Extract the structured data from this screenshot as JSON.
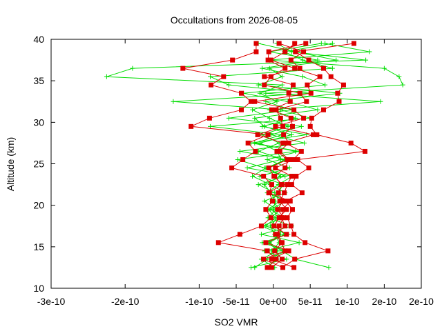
{
  "chart_data": {
    "type": "line",
    "title": "Occultations from 2026-08-05",
    "xlabel": "SO2 VMR",
    "ylabel": "Altitude (km)",
    "xlim": [
      -3e-10,
      2e-10
    ],
    "ylim": [
      10,
      40
    ],
    "x_ticks": [
      {
        "v": -3e-10,
        "label": "-3e-10"
      },
      {
        "v": -2e-10,
        "label": "-2e-10"
      },
      {
        "v": -1e-10,
        "label": "-1e-10"
      },
      {
        "v": -5e-11,
        "label": "-5e-11"
      },
      {
        "v": 0,
        "label": "0e+00"
      },
      {
        "v": 5e-11,
        "label": "5e-11"
      },
      {
        "v": 1e-10,
        "label": "1e-10"
      },
      {
        "v": 1.5e-10,
        "label": "2e-10"
      },
      {
        "v": 2e-10,
        "label": "2e-10"
      }
    ],
    "y_ticks": [
      {
        "v": 10,
        "label": "10"
      },
      {
        "v": 15,
        "label": "15"
      },
      {
        "v": 20,
        "label": "20"
      },
      {
        "v": 25,
        "label": "25"
      },
      {
        "v": 30,
        "label": "30"
      },
      {
        "v": 35,
        "label": "35"
      },
      {
        "v": 40,
        "label": "40"
      }
    ],
    "grid": false,
    "colors": {
      "green": "#00dd00",
      "red": "#dd0000"
    },
    "series": [
      {
        "color": "green",
        "marker": "plus",
        "points": [
          [
            -8e-12,
            12.5
          ],
          [
            5e-12,
            13.5
          ],
          [
            -2e-12,
            14.5
          ],
          [
            8e-12,
            15.5
          ],
          [
            2e-12,
            16.5
          ],
          [
            -4e-12,
            17.5
          ],
          [
            6e-12,
            18.5
          ],
          [
            0,
            19.5
          ],
          [
            3e-12,
            20.5
          ],
          [
            -3e-12,
            21.5
          ],
          [
            -1.2e-11,
            22.5
          ],
          [
            1e-11,
            23.5
          ],
          [
            -6e-12,
            24.5
          ],
          [
            1.5e-11,
            25.5
          ],
          [
            -2e-11,
            26.5
          ],
          [
            8e-12,
            27.5
          ],
          [
            -1.5e-11,
            28.5
          ],
          [
            2e-11,
            29.5
          ],
          [
            -5e-12,
            30.5
          ],
          [
            -2.8e-11,
            31.5
          ],
          [
            5e-12,
            32.5
          ],
          [
            -1.8e-11,
            33.5
          ],
          [
            1.2e-11,
            34.5
          ],
          [
            -2.25e-10,
            35.5
          ],
          [
            -1.9e-10,
            36.5
          ],
          [
            1.25e-10,
            37.5
          ],
          [
            2.5e-11,
            38.5
          ],
          [
            5e-12,
            39.5
          ]
        ]
      },
      {
        "color": "green",
        "marker": "plus",
        "points": [
          [
            7.5e-11,
            12.5
          ],
          [
            3e-11,
            13.5
          ],
          [
            1.2e-11,
            14.5
          ],
          [
            -5e-12,
            15.5
          ],
          [
            1.5e-11,
            16.5
          ],
          [
            3e-12,
            17.5
          ],
          [
            -3e-12,
            18.5
          ],
          [
            1e-11,
            19.5
          ],
          [
            -2e-12,
            20.5
          ],
          [
            6e-12,
            21.5
          ],
          [
            1.4e-11,
            22.5
          ],
          [
            -1.8e-11,
            23.5
          ],
          [
            2.2e-11,
            24.5
          ],
          [
            -8e-12,
            25.5
          ],
          [
            3.5e-11,
            26.5
          ],
          [
            -3e-11,
            27.5
          ],
          [
            4.5e-11,
            28.5
          ],
          [
            -1.5e-11,
            29.5
          ],
          [
            3e-11,
            30.5
          ],
          [
            -5e-12,
            31.5
          ],
          [
            1.45e-10,
            32.5
          ],
          [
            -1e-11,
            33.5
          ],
          [
            1.75e-10,
            34.5
          ],
          [
            1.7e-10,
            35.5
          ],
          [
            1.5e-10,
            36.5
          ],
          [
            -5e-12,
            37.5
          ],
          [
            1.3e-10,
            38.5
          ],
          [
            7e-11,
            39.5
          ]
        ]
      },
      {
        "color": "green",
        "marker": "plus",
        "points": [
          [
            -2.5e-11,
            12.5
          ],
          [
            -8e-12,
            13.5
          ],
          [
            1.8e-11,
            14.5
          ],
          [
            -1.5e-11,
            15.5
          ],
          [
            2e-11,
            16.5
          ],
          [
            -1e-11,
            17.5
          ],
          [
            3e-12,
            18.5
          ],
          [
            -6e-12,
            19.5
          ],
          [
            8e-12,
            20.5
          ],
          [
            2e-12,
            21.5
          ],
          [
            -2e-11,
            22.5
          ],
          [
            1.6e-11,
            23.5
          ],
          [
            -1.2e-11,
            24.5
          ],
          [
            -4.8e-11,
            25.5
          ],
          [
            3e-11,
            26.5
          ],
          [
            -2.5e-11,
            27.5
          ],
          [
            1.2e-11,
            28.5
          ],
          [
            -8.5e-11,
            29.5
          ],
          [
            5e-11,
            30.5
          ],
          [
            1e-11,
            31.5
          ],
          [
            -1.35e-10,
            32.5
          ],
          [
            5e-11,
            33.5
          ],
          [
            -6e-11,
            34.5
          ],
          [
            -8.5e-11,
            35.5
          ],
          [
            8e-11,
            36.5
          ],
          [
            4e-11,
            37.5
          ],
          [
            1.5e-11,
            38.5
          ],
          [
            8e-11,
            39.5
          ]
        ]
      },
      {
        "color": "green",
        "marker": "plus",
        "points": [
          [
            -3e-11,
            12.5
          ],
          [
            1.8e-11,
            13.5
          ],
          [
            -1.2e-11,
            14.5
          ],
          [
            3.5e-11,
            15.5
          ],
          [
            -1.6e-11,
            16.5
          ],
          [
            2.5e-11,
            17.5
          ],
          [
            -7e-12,
            18.5
          ],
          [
            4e-12,
            19.5
          ],
          [
            -1.2e-11,
            20.5
          ],
          [
            1.6e-11,
            21.5
          ],
          [
            -4e-12,
            22.5
          ],
          [
            -2.8e-11,
            23.5
          ],
          [
            -1e-11,
            24.5
          ],
          [
            1.8e-11,
            25.5
          ],
          [
            -4.5e-11,
            26.5
          ],
          [
            4.2e-11,
            27.5
          ],
          [
            -3e-12,
            28.5
          ],
          [
            3.8e-11,
            29.5
          ],
          [
            -6e-11,
            30.5
          ],
          [
            2.5e-11,
            31.5
          ],
          [
            -1e-11,
            32.5
          ],
          [
            9e-11,
            33.5
          ],
          [
            -2e-11,
            34.5
          ],
          [
            1.2e-11,
            35.5
          ],
          [
            -5e-12,
            36.5
          ],
          [
            8.5e-11,
            37.5
          ],
          [
            3e-11,
            38.5
          ],
          [
            -2e-11,
            39.5
          ]
        ]
      },
      {
        "color": "green",
        "marker": "plus",
        "points": [
          [
            2e-12,
            12.5
          ],
          [
            -1.6e-11,
            13.5
          ],
          [
            6e-12,
            14.5
          ],
          [
            -6e-12,
            15.5
          ],
          [
            1e-11,
            16.5
          ],
          [
            -1.5e-11,
            17.5
          ],
          [
            1.4e-11,
            18.5
          ],
          [
            -4e-12,
            19.5
          ],
          [
            1.8e-11,
            20.5
          ],
          [
            -8e-12,
            21.5
          ],
          [
            7e-12,
            22.5
          ],
          [
            2.6e-11,
            23.5
          ],
          [
            -3.5e-11,
            24.5
          ],
          [
            1e-11,
            25.5
          ],
          [
            6e-12,
            26.5
          ],
          [
            -1.8e-11,
            27.5
          ],
          [
            2.5e-11,
            28.5
          ],
          [
            -1.2e-11,
            29.5
          ],
          [
            -2.5e-11,
            30.5
          ],
          [
            6e-11,
            31.5
          ],
          [
            2e-11,
            32.5
          ],
          [
            -4e-11,
            33.5
          ],
          [
            7e-11,
            34.5
          ],
          [
            4e-11,
            35.5
          ],
          [
            -1.5e-11,
            36.5
          ],
          [
            6e-11,
            37.5
          ],
          [
            -5e-12,
            38.5
          ],
          [
            6.5e-11,
            39.5
          ]
        ]
      }
    ],
    "red_series": [
      {
        "color": "red",
        "marker": "square",
        "points": [
          [
            -8e-12,
            12.5
          ],
          [
            4e-12,
            13.5
          ],
          [
            -8e-12,
            14.5
          ],
          [
            -7.4e-11,
            15.5
          ],
          [
            -4.5e-11,
            16.5
          ],
          [
            -1.6e-11,
            17.5
          ],
          [
            -3e-12,
            18.5
          ],
          [
            -1e-11,
            19.5
          ],
          [
            -1e-12,
            20.5
          ],
          [
            -5e-12,
            21.5
          ],
          [
            -2e-12,
            22.5
          ],
          [
            -1.3e-11,
            23.5
          ],
          [
            -5.6e-11,
            24.5
          ],
          [
            -4.1e-11,
            25.5
          ],
          [
            -2.4e-11,
            26.5
          ],
          [
            -3.4e-11,
            27.5
          ],
          [
            -7e-12,
            28.5
          ],
          [
            -1.11e-10,
            29.5
          ],
          [
            -8.6e-11,
            30.5
          ],
          [
            -4.3e-11,
            31.5
          ],
          [
            -3e-11,
            32.5
          ],
          [
            -4.3e-11,
            33.5
          ],
          [
            -8.4e-11,
            34.5
          ],
          [
            -6.7e-11,
            35.5
          ],
          [
            -1.22e-10,
            36.5
          ],
          [
            -5.5e-11,
            37.5
          ],
          [
            -2.3e-11,
            38.5
          ],
          [
            -2.3e-11,
            39.5
          ]
        ]
      },
      {
        "color": "red",
        "marker": "square",
        "points": [
          [
            1.3e-11,
            12.5
          ],
          [
            2.9e-11,
            13.5
          ],
          [
            7.4e-11,
            14.5
          ],
          [
            4.3e-11,
            15.5
          ],
          [
            2.8e-11,
            16.5
          ],
          [
            2.4e-11,
            17.5
          ],
          [
            1.9e-11,
            18.5
          ],
          [
            2.6e-11,
            19.5
          ],
          [
            1.7e-11,
            20.5
          ],
          [
            3.9e-11,
            21.5
          ],
          [
            2.5e-11,
            22.5
          ],
          [
            3.1e-11,
            23.5
          ],
          [
            4.8e-11,
            24.5
          ],
          [
            3.3e-11,
            25.5
          ],
          [
            1.24e-10,
            26.5
          ],
          [
            1.05e-10,
            27.5
          ],
          [
            5.9e-11,
            28.5
          ],
          [
            5e-11,
            29.5
          ],
          [
            5.2e-11,
            30.5
          ],
          [
            6.8e-11,
            31.5
          ],
          [
            8.9e-11,
            32.5
          ],
          [
            8.7e-11,
            33.5
          ],
          [
            9.5e-11,
            34.5
          ],
          [
            7.8e-11,
            35.5
          ],
          [
            6.8e-11,
            36.5
          ],
          [
            4.8e-11,
            37.5
          ],
          [
            3e-11,
            38.5
          ],
          [
            1.09e-10,
            39.5
          ]
        ]
      },
      {
        "color": "red",
        "marker": "square",
        "points": [
          [
            -2e-12,
            12.5
          ],
          [
            1.2e-11,
            13.5
          ],
          [
            2e-12,
            14.5
          ],
          [
            1.2e-11,
            15.5
          ],
          [
            6e-12,
            16.5
          ],
          [
            8e-12,
            17.5
          ],
          [
            1.4e-11,
            18.5
          ],
          [
            6e-12,
            19.5
          ],
          [
            1.3e-11,
            20.5
          ],
          [
            7e-12,
            21.5
          ],
          [
            1.1e-11,
            22.5
          ],
          [
            2e-12,
            23.5
          ],
          [
            1.6e-11,
            24.5
          ],
          [
            2.1e-11,
            25.5
          ],
          [
            9e-12,
            26.5
          ],
          [
            2.1e-11,
            27.5
          ],
          [
            1.4e-11,
            28.5
          ],
          [
            2.6e-11,
            29.5
          ],
          [
            2.4e-11,
            30.5
          ],
          [
            -2e-12,
            31.5
          ],
          [
            2.3e-11,
            32.5
          ],
          [
            2.1e-11,
            33.5
          ],
          [
            2.7e-11,
            34.5
          ],
          [
            -1.2e-11,
            35.5
          ],
          [
            3.6e-11,
            36.5
          ],
          [
            2.4e-11,
            37.5
          ],
          [
            4.1e-11,
            38.5
          ],
          [
            8e-12,
            39.5
          ]
        ]
      },
      {
        "color": "red",
        "marker": "square",
        "points": [
          [
            2.8e-11,
            12.5
          ],
          [
            -2e-12,
            13.5
          ],
          [
            2.1e-11,
            14.5
          ],
          [
            -1e-11,
            15.5
          ],
          [
            1.8e-11,
            16.5
          ],
          [
            1e-12,
            17.5
          ],
          [
            8e-12,
            18.5
          ],
          [
            1.8e-11,
            19.5
          ],
          [
            9e-12,
            20.5
          ],
          [
            1.5e-11,
            21.5
          ],
          [
            1.9e-11,
            22.5
          ],
          [
            2.5e-11,
            23.5
          ],
          [
            3e-12,
            24.5
          ],
          [
            2.7e-11,
            25.5
          ],
          [
            3.8e-11,
            26.5
          ],
          [
            1.6e-11,
            27.5
          ],
          [
            5.4e-11,
            28.5
          ],
          [
            3e-12,
            29.5
          ],
          [
            4.1e-11,
            30.5
          ],
          [
            2.8e-11,
            31.5
          ],
          [
            -2.5e-11,
            32.5
          ],
          [
            5.1e-11,
            33.5
          ],
          [
            4.6e-11,
            34.5
          ],
          [
            6.3e-11,
            35.5
          ],
          [
            2.9e-11,
            36.5
          ],
          [
            -3e-12,
            37.5
          ],
          [
            1.6e-11,
            38.5
          ],
          [
            2.9e-11,
            39.5
          ]
        ]
      },
      {
        "color": "red",
        "marker": "square",
        "points": [
          [
            1.3e-11,
            12.5
          ],
          [
            -1.3e-11,
            13.5
          ],
          [
            1.6e-11,
            14.5
          ],
          [
            1.1e-11,
            15.5
          ],
          [
            3e-12,
            16.5
          ],
          [
            1.6e-11,
            17.5
          ],
          [
            1.1e-11,
            18.5
          ],
          [
            1.3e-11,
            19.5
          ],
          [
            2.3e-11,
            20.5
          ],
          [
            -6e-12,
            21.5
          ],
          [
            1.2e-11,
            22.5
          ],
          [
            1e-12,
            23.5
          ],
          [
            -6e-12,
            24.5
          ],
          [
            1.9e-11,
            25.5
          ],
          [
            5e-12,
            26.5
          ],
          [
            1.3e-11,
            27.5
          ],
          [
            -2.1e-11,
            28.5
          ],
          [
            1.3e-11,
            29.5
          ],
          [
            1e-11,
            30.5
          ],
          [
            4e-12,
            31.5
          ],
          [
            4.5e-11,
            32.5
          ],
          [
            3.6e-11,
            33.5
          ],
          [
            -1.2e-11,
            34.5
          ],
          [
            -3e-12,
            35.5
          ],
          [
            1.6e-11,
            36.5
          ],
          [
            -7e-12,
            37.5
          ],
          [
            -6e-12,
            38.5
          ],
          [
            4.4e-11,
            39.5
          ]
        ]
      }
    ]
  }
}
